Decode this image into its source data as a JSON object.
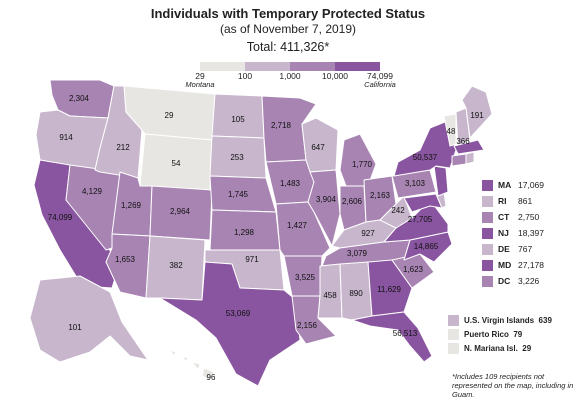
{
  "title": "Individuals with Temporary Protected Status",
  "subtitle": "(as of November 7, 2019)",
  "total": "Total: 411,326*",
  "scale": {
    "ticks": [
      {
        "label": "29",
        "sub": "Montana"
      },
      {
        "label": "100",
        "sub": ""
      },
      {
        "label": "1,000",
        "sub": ""
      },
      {
        "label": "10,000",
        "sub": ""
      },
      {
        "label": "74,099",
        "sub": "California"
      }
    ],
    "colors": [
      "#e8e6e2",
      "#c7b6cc",
      "#a884b3",
      "#8a55a0"
    ]
  },
  "map_labels": {
    "WA": "2,304",
    "OR": "914",
    "CA": "74,099",
    "NV": "4,129",
    "ID": "212",
    "MT": "29",
    "WY": "54",
    "UT": "1,269",
    "AZ": "1,653",
    "CO": "2,964",
    "NM": "382",
    "ND": "105",
    "SD": "253",
    "NE": "1,745",
    "KS": "1,298",
    "OK": "971",
    "TX": "53,069",
    "MN": "2,718",
    "IA": "1,483",
    "MO": "1,427",
    "AR": "3,525",
    "LA": "2,156",
    "WI": "647",
    "IL": "3,904",
    "MI": "1,770",
    "IN": "2,606",
    "OH": "2,163",
    "KY": "927",
    "TN": "3,079",
    "MS": "458",
    "AL": "890",
    "GA": "11,629",
    "FL": "56,513",
    "SC": "1,623",
    "NC": "14,865",
    "VA": "27,705",
    "WV": "242",
    "PA": "3,103",
    "NY": "50,537",
    "VT": "48",
    "NH": "366",
    "ME": "191",
    "AK": "101",
    "HI": "96"
  },
  "small_states": [
    {
      "code": "MA",
      "value": "17,069",
      "color": "#8a55a0"
    },
    {
      "code": "RI",
      "value": "861",
      "color": "#c7b6cc"
    },
    {
      "code": "CT",
      "value": "2,750",
      "color": "#a884b3"
    },
    {
      "code": "NJ",
      "value": "18,397",
      "color": "#8a55a0"
    },
    {
      "code": "DE",
      "value": "767",
      "color": "#c7b6cc"
    },
    {
      "code": "MD",
      "value": "27,178",
      "color": "#8a55a0"
    },
    {
      "code": "DC",
      "value": "3,226",
      "color": "#a884b3"
    }
  ],
  "territories": [
    {
      "label": "U.S. Virgin Islands",
      "value": "639",
      "color": "#c7b6cc"
    },
    {
      "label": "Puerto Rico",
      "value": "79",
      "color": "#e8e6e2"
    },
    {
      "label": "N. Mariana Isl.",
      "value": "29",
      "color": "#e8e6e2"
    }
  ],
  "footnote": "*Includes 109 recipients not represented on the map, including in Guam."
}
